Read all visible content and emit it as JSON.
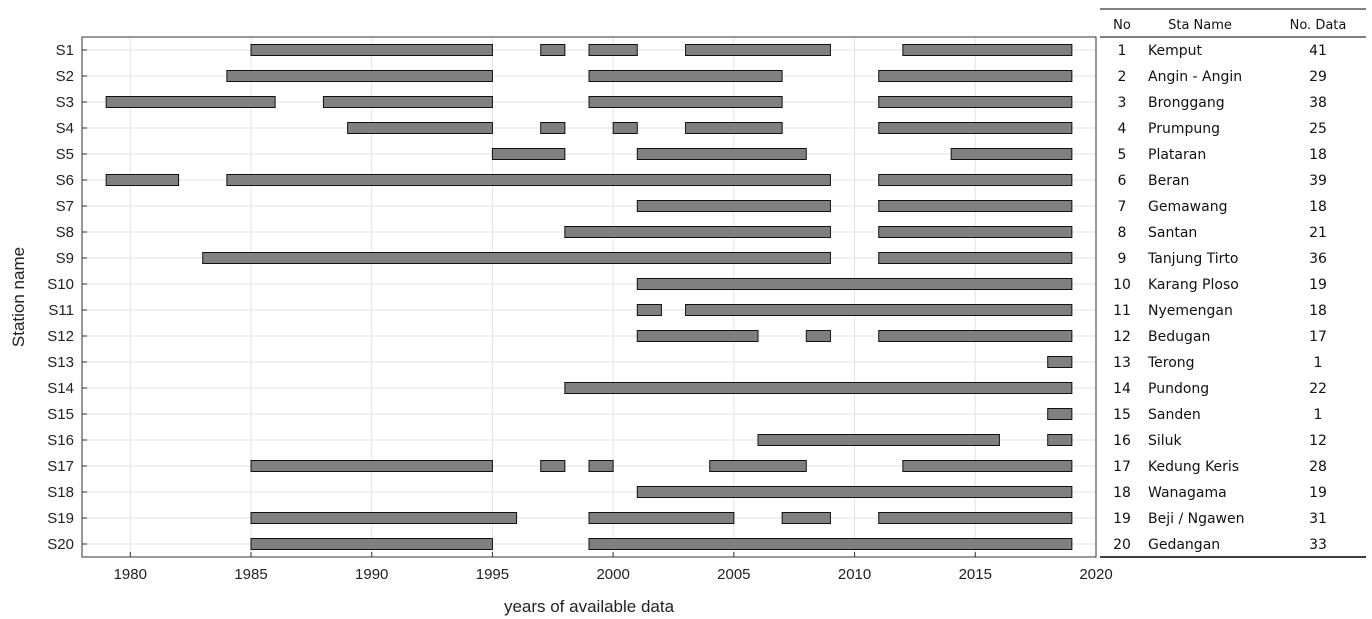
{
  "chart_data": {
    "type": "bar",
    "orientation": "horizontal-ranges",
    "xlabel": "years of available data",
    "ylabel": "Station name",
    "xlim": [
      1978,
      2020
    ],
    "xticks": [
      1980,
      1985,
      1990,
      1995,
      2000,
      2005,
      2010,
      2015,
      2020
    ],
    "grid": true,
    "bar_color": "#808080",
    "stations": [
      {
        "label": "S1",
        "ranges": [
          [
            1985,
            1995
          ],
          [
            1997,
            1998
          ],
          [
            1999,
            2001
          ],
          [
            2003,
            2009
          ],
          [
            2012,
            2019
          ]
        ]
      },
      {
        "label": "S2",
        "ranges": [
          [
            1984,
            1995
          ],
          [
            1999,
            2007
          ],
          [
            2011,
            2019
          ]
        ]
      },
      {
        "label": "S3",
        "ranges": [
          [
            1979,
            1986
          ],
          [
            1988,
            1995
          ],
          [
            1999,
            2007
          ],
          [
            2011,
            2019
          ]
        ]
      },
      {
        "label": "S4",
        "ranges": [
          [
            1989,
            1995
          ],
          [
            1997,
            1998
          ],
          [
            2000,
            2001
          ],
          [
            2003,
            2007
          ],
          [
            2011,
            2019
          ]
        ]
      },
      {
        "label": "S5",
        "ranges": [
          [
            1995,
            1998
          ],
          [
            2001,
            2008
          ],
          [
            2014,
            2019
          ]
        ]
      },
      {
        "label": "S6",
        "ranges": [
          [
            1979,
            1982
          ],
          [
            1984,
            2009
          ],
          [
            2011,
            2019
          ]
        ]
      },
      {
        "label": "S7",
        "ranges": [
          [
            2001,
            2009
          ],
          [
            2011,
            2019
          ]
        ]
      },
      {
        "label": "S8",
        "ranges": [
          [
            1998,
            2009
          ],
          [
            2011,
            2019
          ]
        ]
      },
      {
        "label": "S9",
        "ranges": [
          [
            1983,
            2009
          ],
          [
            2011,
            2019
          ]
        ]
      },
      {
        "label": "S10",
        "ranges": [
          [
            2001,
            2019
          ]
        ]
      },
      {
        "label": "S11",
        "ranges": [
          [
            2001,
            2002
          ],
          [
            2003,
            2019
          ]
        ]
      },
      {
        "label": "S12",
        "ranges": [
          [
            2001,
            2006
          ],
          [
            2008,
            2009
          ],
          [
            2011,
            2019
          ]
        ]
      },
      {
        "label": "S13",
        "ranges": [
          [
            2018,
            2019
          ]
        ]
      },
      {
        "label": "S14",
        "ranges": [
          [
            1998,
            2019
          ]
        ]
      },
      {
        "label": "S15",
        "ranges": [
          [
            2018,
            2019
          ]
        ]
      },
      {
        "label": "S16",
        "ranges": [
          [
            2006,
            2016
          ],
          [
            2018,
            2019
          ]
        ]
      },
      {
        "label": "S17",
        "ranges": [
          [
            1985,
            1995
          ],
          [
            1997,
            1998
          ],
          [
            1999,
            2000
          ],
          [
            2004,
            2008
          ],
          [
            2012,
            2019
          ]
        ]
      },
      {
        "label": "S18",
        "ranges": [
          [
            2001,
            2019
          ]
        ]
      },
      {
        "label": "S19",
        "ranges": [
          [
            1985,
            1996
          ],
          [
            1999,
            2005
          ],
          [
            2007,
            2009
          ],
          [
            2011,
            2019
          ]
        ]
      },
      {
        "label": "S20",
        "ranges": [
          [
            1985,
            1995
          ],
          [
            1999,
            2019
          ]
        ]
      }
    ]
  },
  "table": {
    "headers": {
      "no": "No",
      "name": "Sta Name",
      "count": "No. Data"
    },
    "rows": [
      {
        "no": "1",
        "name": "Kemput",
        "count": "41"
      },
      {
        "no": "2",
        "name": "Angin - Angin",
        "count": "29"
      },
      {
        "no": "3",
        "name": "Bronggang",
        "count": "38"
      },
      {
        "no": "4",
        "name": "Prumpung",
        "count": "25"
      },
      {
        "no": "5",
        "name": "Plataran",
        "count": "18"
      },
      {
        "no": "6",
        "name": "Beran",
        "count": "39"
      },
      {
        "no": "7",
        "name": "Gemawang",
        "count": "18"
      },
      {
        "no": "8",
        "name": "Santan",
        "count": "21"
      },
      {
        "no": "9",
        "name": "Tanjung Tirto",
        "count": "36"
      },
      {
        "no": "10",
        "name": "Karang Ploso",
        "count": "19"
      },
      {
        "no": "11",
        "name": "Nyemengan",
        "count": "18"
      },
      {
        "no": "12",
        "name": "Bedugan",
        "count": "17"
      },
      {
        "no": "13",
        "name": "Terong",
        "count": "1"
      },
      {
        "no": "14",
        "name": "Pundong",
        "count": "22"
      },
      {
        "no": "15",
        "name": "Sanden",
        "count": "1"
      },
      {
        "no": "16",
        "name": "Siluk",
        "count": "12"
      },
      {
        "no": "17",
        "name": "Kedung Keris",
        "count": "28"
      },
      {
        "no": "18",
        "name": "Wanagama",
        "count": "19"
      },
      {
        "no": "19",
        "name": "Beji / Ngawen",
        "count": "31"
      },
      {
        "no": "20",
        "name": "Gedangan",
        "count": "33"
      }
    ]
  }
}
